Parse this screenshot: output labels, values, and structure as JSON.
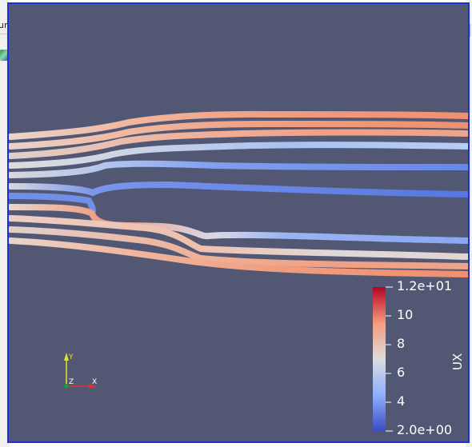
{
  "background_app": {
    "tab_fragment": "ur",
    "icon": "paraview-pipeline-icon"
  },
  "viewport": {
    "background": "#525873",
    "border_color": "#1f2fd6"
  },
  "colorbar": {
    "title": "UX",
    "top_label": "1.2e+01",
    "bottom_label": "2.0e+00",
    "ticks": [
      "10",
      "8",
      "6",
      "4"
    ],
    "range": [
      2.0,
      12.0
    ],
    "colormap": "cool-to-warm"
  },
  "orientation_axes": {
    "x_label": "X",
    "y_label": "Y",
    "z_label": "Z",
    "x_color": "#e0322d",
    "y_color": "#e6e233",
    "z_color": "#1b9b3a"
  }
}
